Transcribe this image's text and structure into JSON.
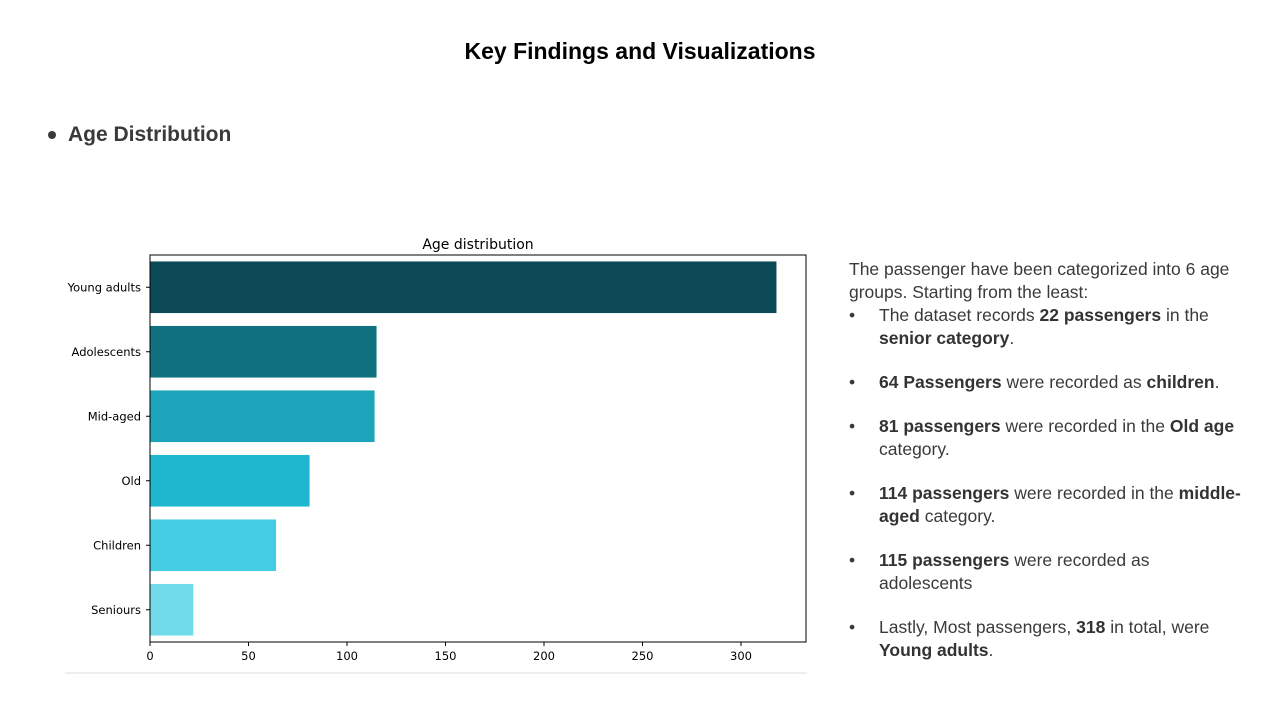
{
  "slide": {
    "title": "Key Findings and Visualizations",
    "section": "Age Distribution"
  },
  "chart_data": {
    "type": "bar",
    "orientation": "horizontal",
    "title": "Age distribution",
    "categories": [
      "Young adults",
      "Adolescents",
      "Mid-aged",
      "Old",
      "Children",
      "Seniours"
    ],
    "values": [
      318,
      115,
      114,
      81,
      64,
      22
    ],
    "colors": [
      "#0c4a57",
      "#127180",
      "#1ea4ba",
      "#1fb7d0",
      "#43cce2",
      "#72dbea"
    ],
    "xlim": [
      0,
      333
    ],
    "xticks": [
      0,
      50,
      100,
      150,
      200,
      250,
      300
    ],
    "xlabel": "",
    "ylabel": "",
    "grid": false
  },
  "notes": {
    "intro": "The passenger have been categorized into 6 age groups. Starting from the least:",
    "items": [
      [
        "The dataset records ",
        {
          "b": "22 passengers"
        },
        " in the ",
        {
          "b": "senior category"
        },
        "."
      ],
      [
        {
          "b": "64 Passengers"
        },
        " were recorded as ",
        {
          "b": "children"
        },
        "."
      ],
      [
        {
          "b": "81 passengers"
        },
        " were recorded in the ",
        {
          "b": "Old age"
        },
        " category."
      ],
      [
        {
          "b": "114 passengers"
        },
        " were recorded in the ",
        {
          "b": "middle-aged"
        },
        " category."
      ],
      [
        {
          "b": "115 passengers"
        },
        " were recorded as adolescents"
      ],
      [
        "Lastly, Most passengers, ",
        {
          "b": "318"
        },
        " in total, were ",
        {
          "b": "Young adults"
        },
        "."
      ]
    ]
  }
}
